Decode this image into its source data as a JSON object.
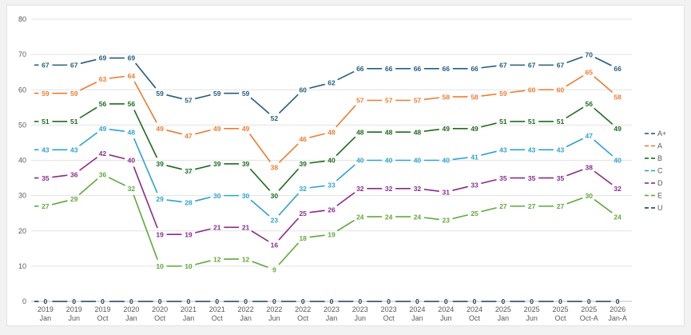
{
  "chart_data": {
    "type": "line",
    "categories": [
      [
        "2019",
        "Jan"
      ],
      [
        "2019",
        "Jun"
      ],
      [
        "2019",
        "Oct"
      ],
      [
        "2020",
        "Jan"
      ],
      [
        "2020",
        "Oct"
      ],
      [
        "2021",
        "Jan"
      ],
      [
        "2021",
        "Oct"
      ],
      [
        "2022",
        "Jan"
      ],
      [
        "2022",
        "Jun"
      ],
      [
        "2022",
        "Oct"
      ],
      [
        "2023",
        "Jan"
      ],
      [
        "2023",
        "Jun"
      ],
      [
        "2023",
        "Oct"
      ],
      [
        "2024",
        "Jan"
      ],
      [
        "2024",
        "Jun"
      ],
      [
        "2024",
        "Oct"
      ],
      [
        "2025",
        "Jan"
      ],
      [
        "2025",
        "Jun"
      ],
      [
        "2025",
        "Oct"
      ],
      [
        "2025",
        "Oct-A"
      ],
      [
        "2026",
        "Jan-A"
      ]
    ],
    "series": [
      {
        "name": "A+",
        "color": "#255e7d",
        "values": [
          67,
          67,
          69,
          69,
          59,
          57,
          59,
          59,
          52,
          60,
          62,
          66,
          66,
          66,
          66,
          66,
          67,
          67,
          67,
          70,
          66
        ]
      },
      {
        "name": "A",
        "color": "#ed7d31",
        "values": [
          59,
          59,
          63,
          64,
          49,
          47,
          49,
          49,
          38,
          46,
          48,
          57,
          57,
          57,
          58,
          58,
          59,
          60,
          60,
          65,
          58
        ]
      },
      {
        "name": "B",
        "color": "#1e6b1e",
        "values": [
          51,
          51,
          56,
          56,
          39,
          37,
          39,
          39,
          30,
          39,
          40,
          48,
          48,
          48,
          49,
          49,
          51,
          51,
          51,
          56,
          49
        ]
      },
      {
        "name": "C",
        "color": "#2ea3cf",
        "values": [
          43,
          43,
          49,
          48,
          29,
          28,
          30,
          30,
          23,
          32,
          33,
          40,
          40,
          40,
          40,
          41,
          43,
          43,
          43,
          47,
          40
        ]
      },
      {
        "name": "D",
        "color": "#8b2a8b",
        "values": [
          35,
          36,
          42,
          40,
          19,
          19,
          21,
          21,
          16,
          25,
          26,
          32,
          32,
          32,
          31,
          33,
          35,
          35,
          35,
          38,
          32
        ]
      },
      {
        "name": "E",
        "color": "#5fa83a",
        "values": [
          27,
          29,
          36,
          32,
          10,
          10,
          12,
          12,
          9,
          18,
          19,
          24,
          24,
          24,
          23,
          25,
          27,
          27,
          27,
          30,
          24
        ]
      },
      {
        "name": "U",
        "color": "#1f3f5c",
        "values": [
          0,
          0,
          0,
          0,
          0,
          0,
          0,
          0,
          0,
          0,
          0,
          0,
          0,
          0,
          0,
          0,
          0,
          0,
          0,
          0,
          0
        ]
      }
    ],
    "yticks": [
      "0",
      "10",
      "20",
      "30",
      "40",
      "50",
      "60",
      "70",
      "80"
    ],
    "ylim": [
      0,
      80
    ],
    "grid": "horizontal",
    "legend": "right"
  }
}
